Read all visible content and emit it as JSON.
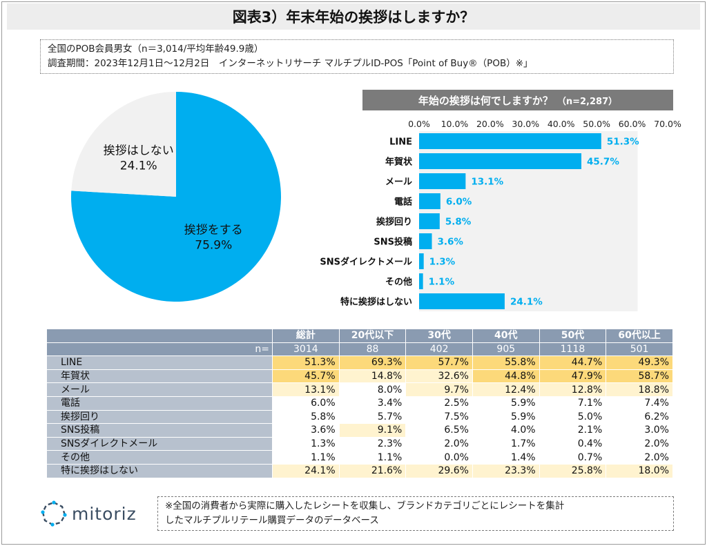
{
  "title": "図表3）年末年始の挨拶はしますか？",
  "source": {
    "line1": "全国のPOB会員男女（n＝3,014/平均年齢49.9歳）",
    "line2": "調査期間：2023年12月1日～12月2日　インターネットリサーチ マルチプルID-POS「Point of Buy®（POB）※」"
  },
  "chart_data": [
    {
      "type": "pie",
      "slices": [
        {
          "label": "挨拶をする",
          "value": 75.9,
          "value_label": "75.9%",
          "color": "#00aeef"
        },
        {
          "label": "挨拶はしない",
          "value": 24.1,
          "value_label": "24.1%",
          "color": "#f1f1f1"
        }
      ]
    },
    {
      "type": "bar",
      "orientation": "horizontal",
      "title": "年始の挨拶は何でしますか？",
      "subtitle": "（n=2,287）",
      "xlim": [
        0,
        70
      ],
      "ticks": [
        "0.0%",
        "10.0%",
        "20.0%",
        "30.0%",
        "40.0%",
        "50.0%",
        "60.0%",
        "70.0%"
      ],
      "categories": [
        "LINE",
        "年賀状",
        "メール",
        "電話",
        "挨拶回り",
        "SNS投稿",
        "SNSダイレクトメール",
        "その他",
        "特に挨拶はしない"
      ],
      "values": [
        51.3,
        45.7,
        13.1,
        6.0,
        5.8,
        3.6,
        1.3,
        1.1,
        24.1
      ],
      "value_labels": [
        "51.3%",
        "45.7%",
        "13.1%",
        "6.0%",
        "5.8%",
        "3.6%",
        "1.3%",
        "1.1%",
        "24.1%"
      ],
      "bar_color": "#00aeef",
      "grid": false
    },
    {
      "type": "table",
      "n_label": "n=",
      "columns": [
        "総計",
        "20代以下",
        "30代",
        "40代",
        "50代",
        "60代以上"
      ],
      "n_values": [
        "3014",
        "88",
        "402",
        "905",
        "1118",
        "501"
      ],
      "rows": [
        {
          "label": "LINE",
          "cells": [
            "51.3%",
            "69.3%",
            "57.7%",
            "55.8%",
            "44.7%",
            "49.3%"
          ],
          "values": [
            51.3,
            69.3,
            57.7,
            55.8,
            44.7,
            49.3
          ]
        },
        {
          "label": "年賀状",
          "cells": [
            "45.7%",
            "14.8%",
            "32.6%",
            "44.8%",
            "47.9%",
            "58.7%"
          ],
          "values": [
            45.7,
            14.8,
            32.6,
            44.8,
            47.9,
            58.7
          ]
        },
        {
          "label": "メール",
          "cells": [
            "13.1%",
            "8.0%",
            "9.7%",
            "12.4%",
            "12.8%",
            "18.8%"
          ],
          "values": [
            13.1,
            8.0,
            9.7,
            12.4,
            12.8,
            18.8
          ]
        },
        {
          "label": "電話",
          "cells": [
            "6.0%",
            "3.4%",
            "2.5%",
            "5.9%",
            "7.1%",
            "7.4%"
          ],
          "values": [
            6.0,
            3.4,
            2.5,
            5.9,
            7.1,
            7.4
          ]
        },
        {
          "label": "挨拶回り",
          "cells": [
            "5.8%",
            "5.7%",
            "7.5%",
            "5.9%",
            "5.0%",
            "6.2%"
          ],
          "values": [
            5.8,
            5.7,
            7.5,
            5.9,
            5.0,
            6.2
          ]
        },
        {
          "label": "SNS投稿",
          "cells": [
            "3.6%",
            "9.1%",
            "6.5%",
            "4.0%",
            "2.1%",
            "3.0%"
          ],
          "values": [
            3.6,
            9.1,
            6.5,
            4.0,
            2.1,
            3.0
          ]
        },
        {
          "label": "SNSダイレクトメール",
          "cells": [
            "1.3%",
            "2.3%",
            "2.0%",
            "1.7%",
            "0.4%",
            "2.0%"
          ],
          "values": [
            1.3,
            2.3,
            2.0,
            1.7,
            0.4,
            2.0
          ]
        },
        {
          "label": "その他",
          "cells": [
            "1.1%",
            "1.1%",
            "0.0%",
            "1.4%",
            "0.7%",
            "2.0%"
          ],
          "values": [
            1.1,
            1.1,
            0.0,
            1.4,
            0.7,
            2.0
          ]
        },
        {
          "label": "特に挨拶はしない",
          "cells": [
            "24.1%",
            "21.6%",
            "29.6%",
            "23.3%",
            "25.8%",
            "18.0%"
          ],
          "values": [
            24.1,
            21.6,
            29.6,
            23.3,
            25.8,
            18.0
          ]
        }
      ],
      "highlight_colors": {
        "strong": "#fcd97a",
        "light": "#fff3cf",
        "none": "#ffffff"
      }
    }
  ],
  "logo": {
    "name": "mitoriz",
    "icon": "mitoriz-logo-icon",
    "color": "#3a4d62",
    "accent": "#00aeef"
  },
  "note": {
    "line1": "※全国の消費者から実際に購入したレシートを収集し、ブランドカテゴリごとにレシートを集計",
    "line2": "したマルチプルリテール購買データのデータベース"
  }
}
